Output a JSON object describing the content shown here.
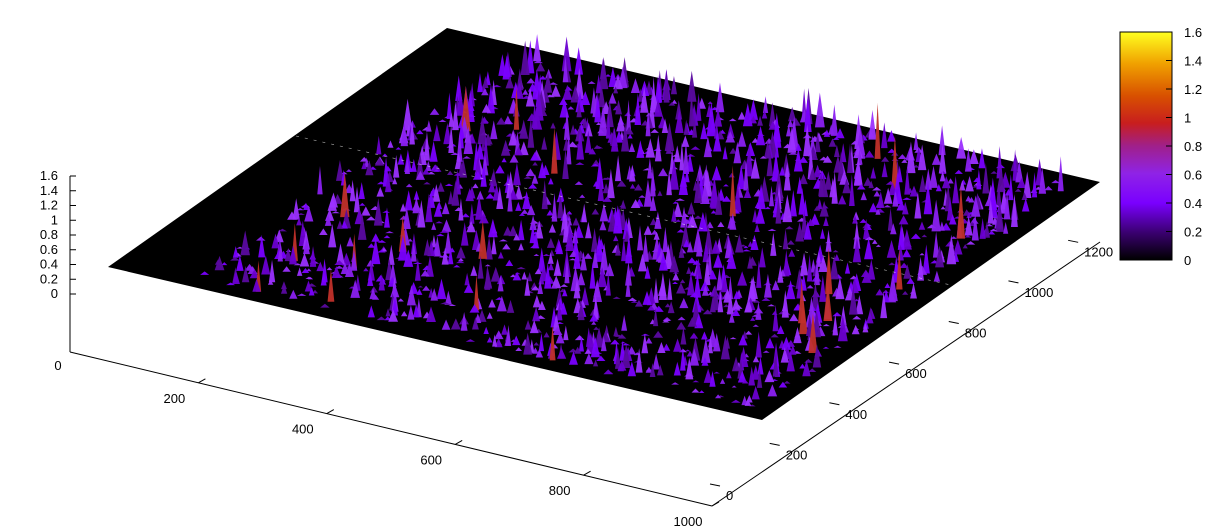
{
  "chart_data": {
    "type": "surface3d",
    "x_axis": {
      "ticks": [
        200,
        400,
        600,
        800,
        1000
      ],
      "range": [
        0,
        1000
      ]
    },
    "y_axis": {
      "ticks": [
        0,
        200,
        400,
        600,
        800,
        1000,
        1200
      ],
      "range": [
        0,
        1300
      ]
    },
    "z_axis": {
      "ticks": [
        0,
        0.2,
        0.4,
        0.6,
        0.8,
        1,
        1.2,
        1.4,
        1.6
      ],
      "range": [
        0,
        1.6
      ]
    },
    "corner_label": "0",
    "colorbar": {
      "ticks": [
        0,
        0.2,
        0.4,
        0.6,
        0.8,
        1,
        1.2,
        1.4,
        1.6
      ],
      "range": [
        0,
        1.6
      ],
      "palette": [
        "#000000",
        "#3a0070",
        "#7a00ff",
        "#8f23e6",
        "#b01e3c",
        "#c83a00",
        "#e07a10",
        "#f2b800",
        "#ffff20"
      ]
    },
    "surface_description_values": {
      "baseline": 0,
      "typical_peak": 0.5,
      "max_peak": 0.9
    },
    "grid": false,
    "legend": "colorbar-right"
  }
}
